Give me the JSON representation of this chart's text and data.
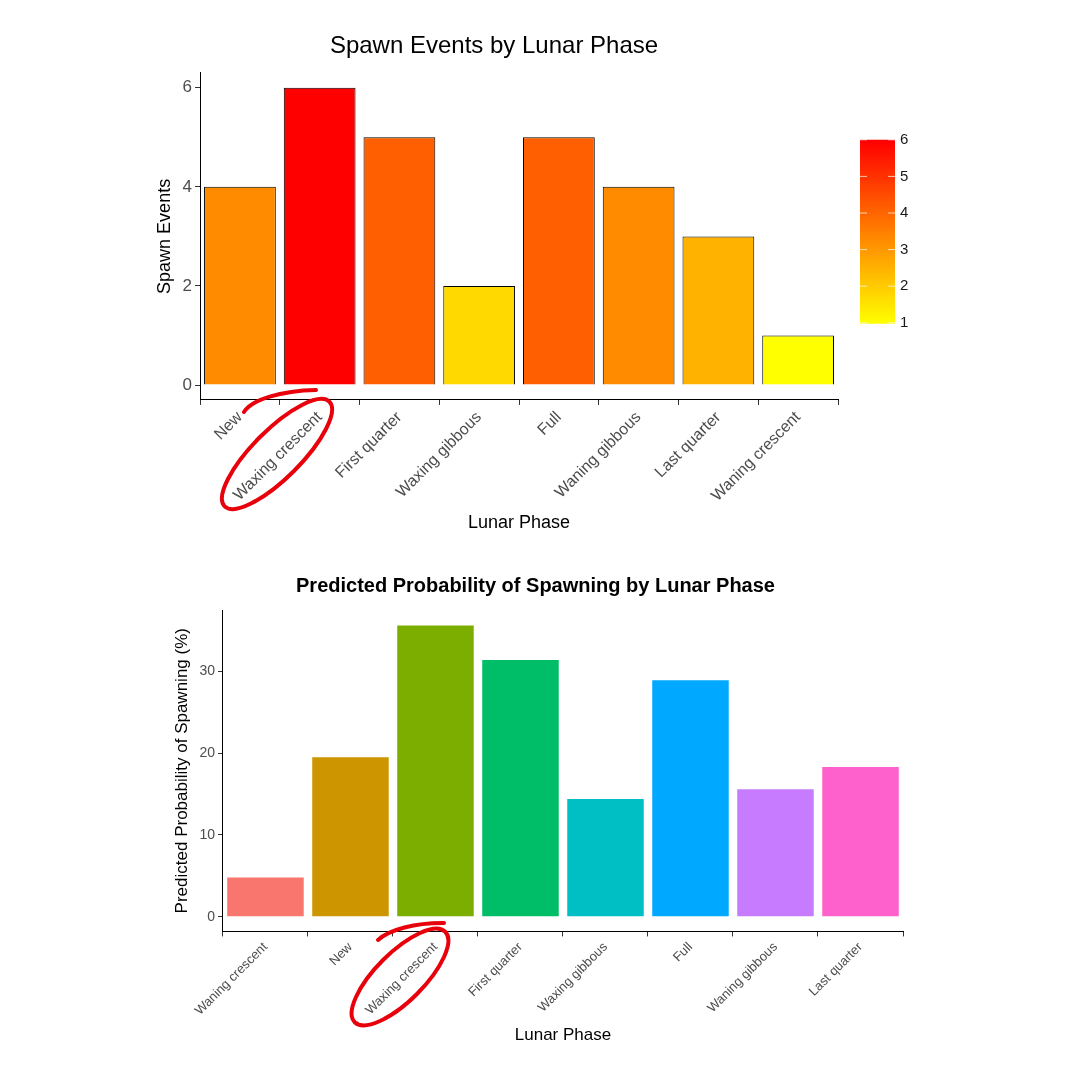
{
  "chart_data": [
    {
      "type": "bar",
      "title": "Spawn Events by Lunar Phase",
      "xlabel": "Lunar Phase",
      "ylabel": "Spawn Events",
      "categories": [
        "New",
        "Waxing crescent",
        "First quarter",
        "Waxing gibbous",
        "Full",
        "Waning gibbous",
        "Last quarter",
        "Waning crescent"
      ],
      "values": [
        4,
        6,
        5,
        2,
        5,
        4,
        3,
        1
      ],
      "colors": [
        "#ff8c00",
        "#ff0000",
        "#ff5f00",
        "#ffd900",
        "#ff5f00",
        "#ff8c00",
        "#ffb200",
        "#ffff00"
      ],
      "ylim": [
        -0.3,
        6.3
      ],
      "yticks": [
        0,
        2,
        4,
        6
      ],
      "grid": false,
      "clim": [
        1,
        6
      ],
      "cticks": [
        1,
        2,
        3,
        4,
        5,
        6
      ]
    },
    {
      "type": "bar",
      "title": "Predicted Probability of Spawning by Lunar Phase",
      "xlabel": "Lunar Phase",
      "ylabel": "Predicted Probability of Spawning (%)",
      "categories": [
        "Waning crescent",
        "New",
        "Waxing crescent",
        "First quarter",
        "Waxing gibbous",
        "Full",
        "Waning gibbous",
        "Last quarter"
      ],
      "values": [
        4.8,
        19.5,
        35.6,
        31.4,
        14.4,
        28.9,
        15.6,
        18.3
      ],
      "colors": [
        "#f8766d",
        "#cd9600",
        "#7cae00",
        "#00be67",
        "#00bfc4",
        "#00a9ff",
        "#c77cff",
        "#ff61cc"
      ],
      "ylim": [
        -1.8,
        37.5
      ],
      "yticks": [
        0,
        10,
        20,
        30
      ],
      "grid": false
    }
  ]
}
